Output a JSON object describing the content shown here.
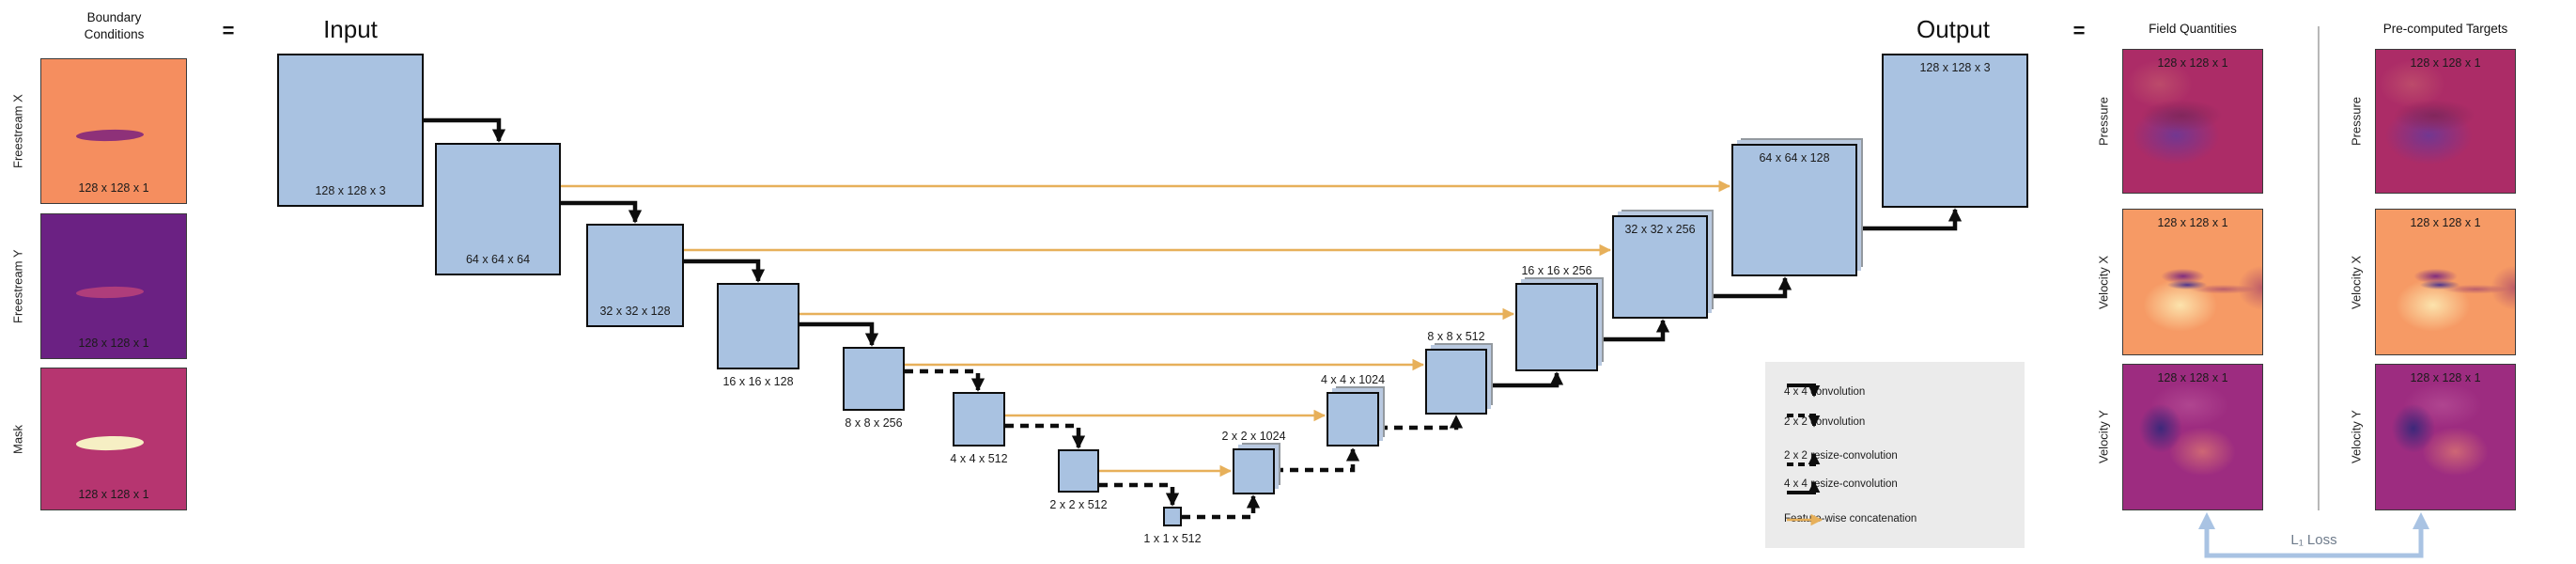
{
  "diagram": {
    "equals_sign": "=",
    "input_title": "Input",
    "output_title": "Output"
  },
  "boundary_conditions": {
    "title_line1": "Boundary",
    "title_line2": "Conditions",
    "rows": [
      {
        "side_label": "Freestream X",
        "dims": "128 x 128 x 1"
      },
      {
        "side_label": "Freestream Y",
        "dims": "128 x 128 x 1"
      },
      {
        "side_label": "Mask",
        "dims": "128 x 128 x 1"
      }
    ]
  },
  "unet": {
    "blocks": [
      {
        "dims": "128 x 128 x 3"
      },
      {
        "dims": "64 x 64 x 64"
      },
      {
        "dims": "32 x 32 x 128"
      },
      {
        "dims": "16 x 16 x 128"
      },
      {
        "dims": "8 x 8 x 256"
      },
      {
        "dims": "4 x 4 x 512"
      },
      {
        "dims": "2 x 2 x 512"
      },
      {
        "dims": "1 x 1 x 512"
      },
      {
        "dims": "2 x 2 x 1024"
      },
      {
        "dims": "4 x 4 x 1024"
      },
      {
        "dims": "8 x 8 x 512"
      },
      {
        "dims": "16 x 16 x 256"
      },
      {
        "dims": "32 x 32 x 256"
      },
      {
        "dims": "64 x 64 x 128"
      },
      {
        "dims": "128 x 128 x 3"
      }
    ]
  },
  "legend": {
    "items": [
      {
        "label": "4 x 4 convolution",
        "style": "solid-down"
      },
      {
        "label": "2 x 2 convolution",
        "style": "dashed-down"
      },
      {
        "label": "2 x 2 resize-convolution",
        "style": "dashed-up"
      },
      {
        "label": "4 x 4 resize-convolution",
        "style": "solid-up"
      },
      {
        "label": "Feature-wise concatenation",
        "style": "concat-right"
      }
    ]
  },
  "field_quantities": {
    "title": "Field Quantities",
    "rows": [
      {
        "side_label": "Pressure",
        "dims": "128 x 128 x 1"
      },
      {
        "side_label": "Velocity X",
        "dims": "128 x 128 x 1"
      },
      {
        "side_label": "Velocity Y",
        "dims": "128 x 128 x 1"
      }
    ]
  },
  "precomputed_targets": {
    "title": "Pre-computed Targets",
    "rows": [
      {
        "side_label": "Pressure",
        "dims": "128 x 128 x 1"
      },
      {
        "side_label": "Velocity X",
        "dims": "128 x 128 x 1"
      },
      {
        "side_label": "Velocity Y",
        "dims": "128 x 128 x 1"
      }
    ]
  },
  "loss": {
    "label": "L₁ Loss"
  },
  "colors": {
    "block_fill": "#a9c2e1",
    "concat_arrow": "#e7b05a",
    "legend_bg": "#ebebeb",
    "loss_arrow": "#a9c3e3",
    "loss_text": "#6e7b8b",
    "freestream_x_bg": "#f58e5f",
    "freestream_x_airfoil": "#8e3179",
    "freestream_y_bg": "#6b2183",
    "freestream_y_airfoil": "#af3d7b",
    "mask_bg": "#b63570",
    "mask_airfoil": "#f6efc4",
    "pressure_base": "#ac2c67",
    "velocity_x_base": "#f69a65",
    "velocity_y_base": "#9d2c80"
  }
}
